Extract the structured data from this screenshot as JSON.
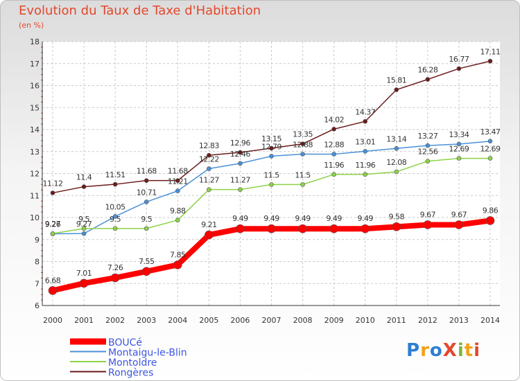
{
  "title": "Evolution du Taux de Taxe d'Habitation",
  "subtitle": "(en %)",
  "logo": {
    "text": "ProXiti",
    "letter_colors": [
      "#2f7fd1",
      "#f3a11b",
      "#2f7fd1",
      "#e4472c",
      "#7ab834",
      "#f3a11b",
      "#e4472c"
    ]
  },
  "chart_data": {
    "type": "line",
    "title": "Evolution du Taux de Taxe d'Habitation",
    "ylabel": "(en %)",
    "xlabel": "",
    "ylim": [
      6,
      18
    ],
    "y_ticks": [
      "6",
      "7",
      "8",
      "9",
      "10",
      "11",
      "12",
      "13",
      "14",
      "15",
      "16",
      "17",
      "18"
    ],
    "x": [
      "2000",
      "2001",
      "2002",
      "2003",
      "2004",
      "2005",
      "2006",
      "2007",
      "2008",
      "2009",
      "2010",
      "2011",
      "2012",
      "2013",
      "2014"
    ],
    "grid": true,
    "legend_position": "bottom-left",
    "series": [
      {
        "name": "Rongères",
        "color": "#6b1b1b",
        "values": [
          11.12,
          11.4,
          11.51,
          11.68,
          11.68,
          12.83,
          12.96,
          13.15,
          13.35,
          14.02,
          14.37,
          15.81,
          16.28,
          16.77,
          17.11
        ],
        "labels": [
          "11.12",
          "11.4",
          "11.51",
          "11.68",
          "11.68",
          "12.83",
          "12.96",
          "13.15",
          "13.35",
          "14.02",
          "14.37",
          "15.81",
          "16.28",
          "16.77",
          "17.11"
        ]
      },
      {
        "name": "Montaigu-le-Blin",
        "color": "#4a90d9",
        "values": [
          9.26,
          9.27,
          10.05,
          10.71,
          11.21,
          12.22,
          12.46,
          12.79,
          12.88,
          12.88,
          13.01,
          13.14,
          13.27,
          13.34,
          13.47
        ],
        "labels": [
          "9.26",
          "9.27",
          "10.05",
          "10.71",
          "11.21",
          "12.22",
          "12.46",
          "12.79",
          "12.88",
          "12.88",
          "13.01",
          "13.14",
          "13.27",
          "13.34",
          "13.47"
        ]
      },
      {
        "name": "Montoldre",
        "color": "#8cd347",
        "values": [
          9.27,
          9.5,
          9.5,
          9.5,
          9.88,
          11.27,
          11.27,
          11.5,
          11.5,
          11.96,
          11.96,
          12.08,
          12.56,
          12.69,
          12.69
        ],
        "labels": [
          "9.27",
          "9.5",
          "9.5",
          "9.5",
          "9.88",
          "11.27",
          "11.27",
          "11.5",
          "11.5",
          "11.96",
          "11.96",
          "12.08",
          "12.56",
          "12.69",
          "12.69"
        ]
      },
      {
        "name": "BOUCé",
        "color": "#ff0000",
        "values": [
          6.68,
          7.01,
          7.26,
          7.55,
          7.85,
          9.21,
          9.49,
          9.49,
          9.49,
          9.49,
          9.49,
          9.58,
          9.67,
          9.67,
          9.86
        ],
        "labels": [
          "6.68",
          "7.01",
          "7.26",
          "7.55",
          "7.85",
          "9.21",
          "9.49",
          "9.49",
          "9.49",
          "9.49",
          "9.49",
          "9.58",
          "9.67",
          "9.67",
          "9.86"
        ]
      }
    ],
    "legend": [
      "BOUCé",
      "Montaigu-le-Blin",
      "Montoldre",
      "Rongères"
    ]
  }
}
